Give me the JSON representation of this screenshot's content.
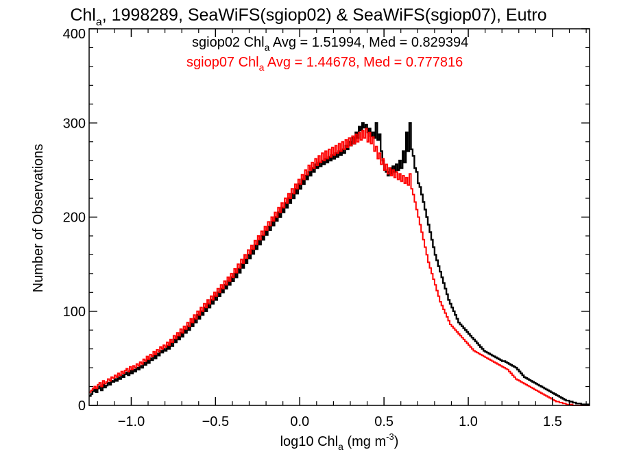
{
  "chart_data": {
    "type": "histogram",
    "title_parts": {
      "a": "Chl",
      "sub": "a",
      "b": ", 1998289, SeaWiFS(sgiop02) & SeaWiFS(sgiop07), Eutro"
    },
    "xlabel_parts": {
      "a": "log10 Chl",
      "sub": "a",
      "b": " (mg m",
      "sup": "-3",
      "c": ")"
    },
    "ylabel": "Number of Observations",
    "xlim": [
      -1.25,
      1.72
    ],
    "ylim": [
      0,
      400
    ],
    "xticks": [
      -1.0,
      -0.5,
      0.0,
      0.5,
      1.0,
      1.5
    ],
    "xtick_labels": [
      "−1.0",
      "−0.5",
      "0.0",
      "0.5",
      "1.0",
      "1.5"
    ],
    "yticks": [
      0,
      100,
      200,
      300,
      400
    ],
    "ytick_labels": [
      "0",
      "100",
      "200",
      "300",
      "400"
    ],
    "bin_width": 0.01,
    "bin_start": -1.25,
    "series": [
      {
        "name": "sgiop02",
        "color": "#000000",
        "annotation": {
          "a": "sgiop02 Chl",
          "sub": "a",
          "b": " Avg = 1.51994, Med = 0.829394"
        },
        "values": [
          10,
          12,
          15,
          17,
          14,
          18,
          20,
          16,
          22,
          19,
          21,
          24,
          22,
          26,
          25,
          28,
          26,
          30,
          28,
          32,
          30,
          33,
          35,
          32,
          37,
          34,
          38,
          36,
          40,
          38,
          42,
          40,
          45,
          43,
          48,
          45,
          50,
          48,
          53,
          50,
          55,
          53,
          58,
          56,
          60,
          58,
          63,
          60,
          66,
          63,
          70,
          67,
          73,
          70,
          77,
          73,
          80,
          77,
          84,
          80,
          88,
          84,
          92,
          88,
          96,
          92,
          100,
          96,
          104,
          100,
          108,
          104,
          112,
          108,
          116,
          112,
          120,
          116,
          124,
          120,
          128,
          124,
          132,
          128,
          136,
          132,
          140,
          136,
          145,
          141,
          150,
          146,
          155,
          151,
          160,
          156,
          165,
          161,
          170,
          166,
          175,
          171,
          180,
          176,
          185,
          181,
          190,
          186,
          195,
          191,
          200,
          196,
          205,
          200,
          210,
          205,
          215,
          210,
          220,
          215,
          225,
          220,
          230,
          225,
          235,
          230,
          240,
          235,
          244,
          240,
          248,
          244,
          252,
          248,
          256,
          252,
          258,
          254,
          260,
          256,
          262,
          258,
          264,
          260,
          266,
          262,
          268,
          264,
          270,
          266,
          272,
          268,
          276,
          272,
          280,
          276,
          284,
          278,
          290,
          284,
          296,
          292,
          300,
          295,
          298,
          290,
          294,
          286,
          290,
          284,
          300,
          282,
          288,
          270,
          260,
          250,
          248,
          244,
          252,
          246,
          254,
          248,
          256,
          250,
          260,
          252,
          270,
          258,
          290,
          270,
          300,
          272,
          265,
          252,
          248,
          236,
          232,
          224,
          216,
          208,
          200,
          192,
          184,
          176,
          168,
          160,
          154,
          148,
          142,
          136,
          130,
          124,
          118,
          112,
          108,
          104,
          100,
          96,
          92,
          88,
          86,
          84,
          82,
          80,
          78,
          76,
          74,
          72,
          70,
          68,
          66,
          64,
          62,
          60,
          58,
          57,
          56,
          55,
          54,
          53,
          52,
          51,
          50,
          49,
          48,
          47,
          47,
          46,
          45,
          44,
          43,
          42,
          41,
          40,
          38,
          36,
          34,
          32,
          30,
          29,
          28,
          27,
          26,
          25,
          24,
          23,
          22,
          21,
          20,
          19,
          18,
          17,
          16,
          15,
          14,
          13,
          12,
          11,
          10,
          9,
          8,
          7,
          6,
          5,
          5,
          4,
          4,
          3,
          3,
          2,
          2,
          2,
          1,
          1,
          1,
          1,
          1,
          0,
          0,
          0,
          0,
          0,
          0,
          0,
          0,
          0,
          0,
          0,
          0,
          0,
          0,
          0,
          0,
          0,
          0
        ]
      },
      {
        "name": "sgiop07",
        "color": "#ff0000",
        "annotation": {
          "a": "sgiop07 Chl",
          "sub": "a",
          "b": " Avg = 1.44678, Med = 0.777816"
        },
        "values": [
          14,
          16,
          18,
          20,
          18,
          22,
          24,
          20,
          26,
          23,
          25,
          28,
          26,
          30,
          29,
          32,
          30,
          34,
          32,
          36,
          34,
          37,
          39,
          36,
          41,
          38,
          42,
          40,
          44,
          42,
          46,
          44,
          49,
          47,
          52,
          49,
          54,
          52,
          57,
          54,
          59,
          57,
          62,
          60,
          64,
          62,
          67,
          64,
          70,
          67,
          74,
          71,
          77,
          74,
          81,
          77,
          84,
          81,
          88,
          84,
          92,
          88,
          96,
          92,
          100,
          96,
          104,
          100,
          108,
          104,
          112,
          108,
          116,
          112,
          120,
          116,
          124,
          120,
          128,
          124,
          132,
          128,
          136,
          132,
          140,
          136,
          145,
          141,
          150,
          146,
          155,
          151,
          160,
          156,
          165,
          161,
          170,
          166,
          175,
          171,
          180,
          176,
          185,
          181,
          190,
          186,
          195,
          191,
          200,
          196,
          205,
          200,
          210,
          205,
          215,
          210,
          220,
          215,
          225,
          220,
          230,
          225,
          235,
          230,
          240,
          235,
          245,
          240,
          250,
          245,
          255,
          250,
          258,
          252,
          262,
          255,
          265,
          258,
          268,
          260,
          270,
          262,
          272,
          264,
          274,
          266,
          276,
          268,
          278,
          270,
          280,
          272,
          282,
          274,
          284,
          276,
          286,
          278,
          288,
          280,
          290,
          282,
          292,
          284,
          294,
          280,
          290,
          278,
          285,
          270,
          275,
          262,
          268,
          256,
          262,
          250,
          256,
          246,
          252,
          244,
          250,
          242,
          248,
          240,
          246,
          238,
          244,
          236,
          242,
          234,
          246,
          230,
          224,
          216,
          208,
          200,
          192,
          184,
          176,
          168,
          160,
          152,
          146,
          140,
          134,
          128,
          122,
          116,
          110,
          106,
          102,
          98,
          94,
          90,
          86,
          84,
          82,
          80,
          78,
          76,
          74,
          72,
          70,
          68,
          66,
          64,
          62,
          60,
          58,
          57,
          56,
          55,
          54,
          53,
          52,
          51,
          50,
          49,
          48,
          47,
          46,
          45,
          44,
          43,
          42,
          41,
          40,
          39,
          38,
          36,
          34,
          32,
          30,
          28,
          27,
          26,
          25,
          24,
          23,
          22,
          21,
          20,
          19,
          18,
          17,
          16,
          15,
          14,
          13,
          12,
          11,
          10,
          9,
          8,
          7,
          6,
          5,
          4,
          4,
          3,
          3,
          2,
          2,
          1,
          1,
          1,
          1,
          0,
          0,
          0,
          0,
          0,
          0,
          0,
          0,
          0,
          0,
          0,
          0,
          0,
          0,
          0,
          0,
          0,
          0,
          0,
          0,
          0,
          0,
          0
        ]
      }
    ]
  }
}
